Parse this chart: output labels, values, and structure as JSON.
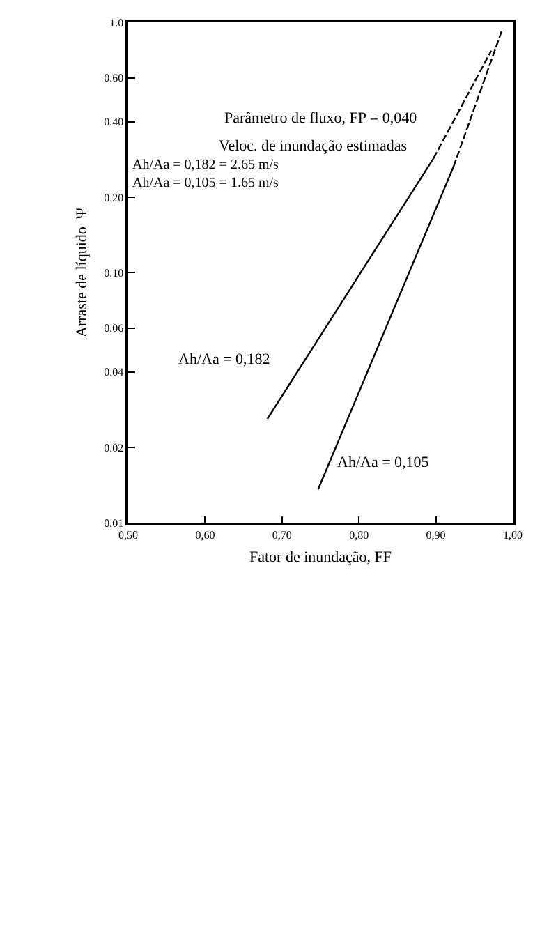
{
  "chart_data": {
    "type": "line",
    "xlabel": "Fator de inundação, FF",
    "ylabel": "Arraste de líquido  Ψ",
    "xlim": [
      0.5,
      1.0
    ],
    "xticks": [
      {
        "value": 0.5,
        "label": "0,50"
      },
      {
        "value": 0.6,
        "label": "0,60"
      },
      {
        "value": 0.7,
        "label": "0,70"
      },
      {
        "value": 0.8,
        "label": "0,80"
      },
      {
        "value": 0.9,
        "label": "0,90"
      },
      {
        "value": 1.0,
        "label": "1,00"
      }
    ],
    "ylim": [
      0.01,
      1.0
    ],
    "yticks": [
      {
        "value": 0.01,
        "label": "0.01"
      },
      {
        "value": 0.02,
        "label": "0.02"
      },
      {
        "value": 0.04,
        "label": "0.04"
      },
      {
        "value": 0.06,
        "label": "0.06"
      },
      {
        "value": 0.1,
        "label": "0.10"
      },
      {
        "value": 0.2,
        "label": "0.20"
      },
      {
        "value": 0.4,
        "label": "0.40"
      },
      {
        "value": 0.6,
        "label": "0.60"
      },
      {
        "value": 1.0,
        "label": "1.0"
      }
    ],
    "log": "y",
    "marker": "none",
    "series": [
      {
        "color": "#000000",
        "line_style": "solid",
        "x": [
          0.681,
          0.897
        ],
        "values": [
          0.026,
          0.286
        ]
      },
      {
        "color": "#000000",
        "line_style": "dashed",
        "x": [
          0.897,
          0.972
        ],
        "values": [
          0.286,
          0.77
        ]
      },
      {
        "color": "#000000",
        "line_style": "solid",
        "x": [
          0.747,
          0.923
        ],
        "values": [
          0.0136,
          0.265
        ]
      },
      {
        "color": "#000000",
        "line_style": "dashed",
        "x": [
          0.923,
          0.986
        ],
        "values": [
          0.265,
          0.93
        ]
      }
    ],
    "annotations": [
      "Parâmetro de fluxo, FP = 0,040",
      "Veloc. de inundação estimadas",
      "Ah/Aa = 0,182 = 2.65 m/s",
      "Ah/Aa = 0,105 = 1.65 m/s",
      "Ah/Aa = 0,182",
      "Ah/Aa = 0,105"
    ]
  }
}
